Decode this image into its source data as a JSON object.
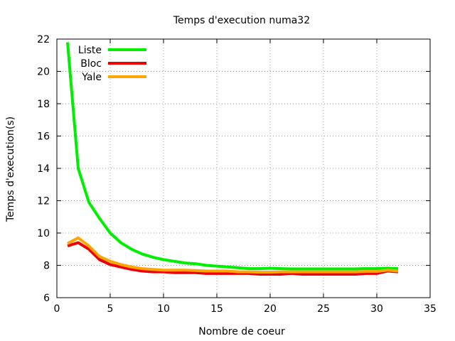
{
  "chart_data": {
    "type": "line",
    "title": "Temps d'execution numa32",
    "xlabel": "Nombre de coeur",
    "ylabel": "Temps d'execution(s)",
    "xlim": [
      0,
      35
    ],
    "ylim": [
      6,
      22
    ],
    "xticks": [
      0,
      5,
      10,
      15,
      20,
      25,
      30,
      35
    ],
    "yticks": [
      6,
      8,
      10,
      12,
      14,
      16,
      18,
      20,
      22
    ],
    "grid": true,
    "legend_position": "top-left",
    "x": [
      1,
      2,
      3,
      4,
      5,
      6,
      7,
      8,
      9,
      10,
      11,
      12,
      13,
      14,
      15,
      16,
      17,
      18,
      19,
      20,
      21,
      22,
      23,
      24,
      25,
      26,
      27,
      28,
      29,
      30,
      31,
      32
    ],
    "series": [
      {
        "name": "Liste",
        "color": "#00ee00",
        "values": [
          21.8,
          14.0,
          11.9,
          10.9,
          10.0,
          9.4,
          9.0,
          8.7,
          8.5,
          8.35,
          8.25,
          8.15,
          8.1,
          8.0,
          7.95,
          7.9,
          7.85,
          7.8,
          7.8,
          7.82,
          7.8,
          7.78,
          7.78,
          7.78,
          7.78,
          7.78,
          7.78,
          7.78,
          7.8,
          7.8,
          7.82,
          7.8
        ]
      },
      {
        "name": "Bloc",
        "color": "#ee0000",
        "values": [
          9.2,
          9.4,
          9.0,
          8.35,
          8.05,
          7.9,
          7.75,
          7.65,
          7.6,
          7.6,
          7.55,
          7.55,
          7.55,
          7.5,
          7.5,
          7.5,
          7.5,
          7.5,
          7.45,
          7.45,
          7.45,
          7.5,
          7.45,
          7.45,
          7.45,
          7.45,
          7.45,
          7.45,
          7.5,
          7.5,
          7.65,
          7.6
        ]
      },
      {
        "name": "Yale",
        "color": "#ffa500",
        "values": [
          9.35,
          9.7,
          9.2,
          8.55,
          8.25,
          8.05,
          7.9,
          7.8,
          7.75,
          7.7,
          7.7,
          7.7,
          7.68,
          7.65,
          7.65,
          7.65,
          7.6,
          7.6,
          7.58,
          7.58,
          7.6,
          7.6,
          7.6,
          7.6,
          7.6,
          7.6,
          7.6,
          7.6,
          7.62,
          7.62,
          7.7,
          7.65
        ]
      }
    ]
  }
}
